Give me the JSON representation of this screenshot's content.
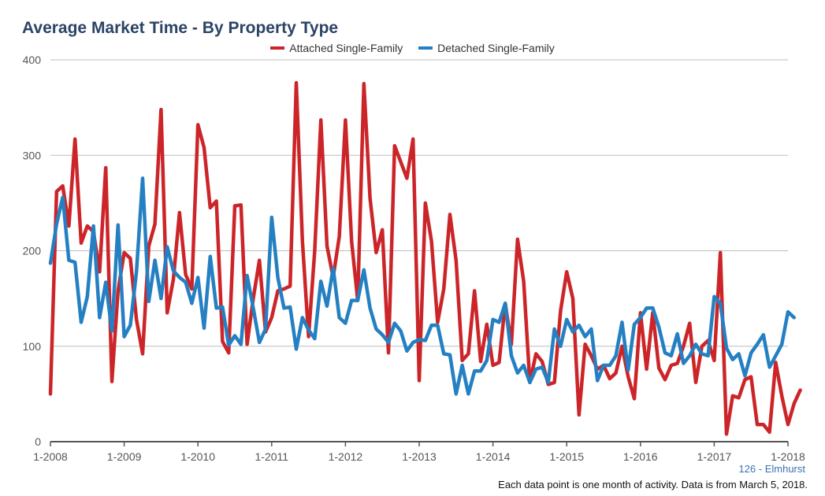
{
  "chart_data": {
    "type": "line",
    "title": "Average Market Time - By Property Type",
    "ylim": [
      0,
      400
    ],
    "yticks": [
      0,
      100,
      200,
      300,
      400
    ],
    "x_tick_labels": [
      "1-2008",
      "1-2009",
      "1-2010",
      "1-2011",
      "1-2012",
      "1-2013",
      "1-2014",
      "1-2015",
      "1-2016",
      "1-2017",
      "1-2018"
    ],
    "series": [
      {
        "name": "Attached Single-Family",
        "color": "#cc2529",
        "values": [
          50,
          262,
          268,
          226,
          317,
          208,
          226,
          220,
          178,
          287,
          63,
          158,
          198,
          192,
          128,
          92,
          205,
          228,
          348,
          135,
          170,
          240,
          175,
          160,
          332,
          308,
          245,
          252,
          105,
          93,
          247,
          248,
          102,
          150,
          190,
          115,
          130,
          158,
          160,
          163,
          376,
          210,
          110,
          200,
          337,
          205,
          172,
          215,
          337,
          210,
          148,
          375,
          255,
          198,
          222,
          93,
          310,
          293,
          276,
          317,
          64,
          250,
          210,
          125,
          160,
          238,
          190,
          85,
          92,
          158,
          84,
          123,
          80,
          83,
          145,
          102,
          212,
          168,
          62,
          92,
          84,
          60,
          62,
          137,
          178,
          150,
          28,
          102,
          90,
          76,
          80,
          66,
          72,
          100,
          68,
          45,
          135,
          76,
          135,
          77,
          65,
          80,
          82,
          100,
          124,
          62,
          100,
          106,
          85,
          198,
          8,
          48,
          46,
          65,
          68,
          18,
          18,
          10,
          83,
          48,
          18,
          40,
          54
        ],
        "legend_label": "Attached Single-Family"
      },
      {
        "name": "Detached Single-Family",
        "color": "#2480c2",
        "values": [
          187,
          228,
          256,
          190,
          188,
          125,
          152,
          226,
          130,
          167,
          116,
          227,
          110,
          122,
          178,
          276,
          147,
          190,
          150,
          204,
          179,
          172,
          167,
          145,
          172,
          119,
          194,
          140,
          141,
          101,
          111,
          102,
          174,
          140,
          104,
          118,
          235,
          172,
          140,
          141,
          97,
          130,
          117,
          108,
          168,
          142,
          182,
          130,
          124,
          148,
          148,
          180,
          140,
          118,
          112,
          104,
          124,
          116,
          95,
          104,
          107,
          106,
          122,
          122,
          92,
          91,
          50,
          80,
          50,
          74,
          74,
          85,
          128,
          125,
          145,
          90,
          72,
          80,
          62,
          76,
          78,
          62,
          118,
          100,
          128,
          115,
          122,
          110,
          118,
          64,
          80,
          80,
          90,
          125,
          75,
          123,
          130,
          140,
          140,
          120,
          93,
          90,
          113,
          82,
          90,
          102,
          92,
          90,
          152,
          145,
          98,
          86,
          92,
          69,
          93,
          102,
          112,
          78,
          90,
          102,
          136,
          130
        ],
        "legend_label": "Detached Single-Family"
      }
    ]
  },
  "footer": {
    "location": "126 - Elmhurst",
    "note": "Each data point is one month of activity. Data is from March 5, 2018."
  }
}
